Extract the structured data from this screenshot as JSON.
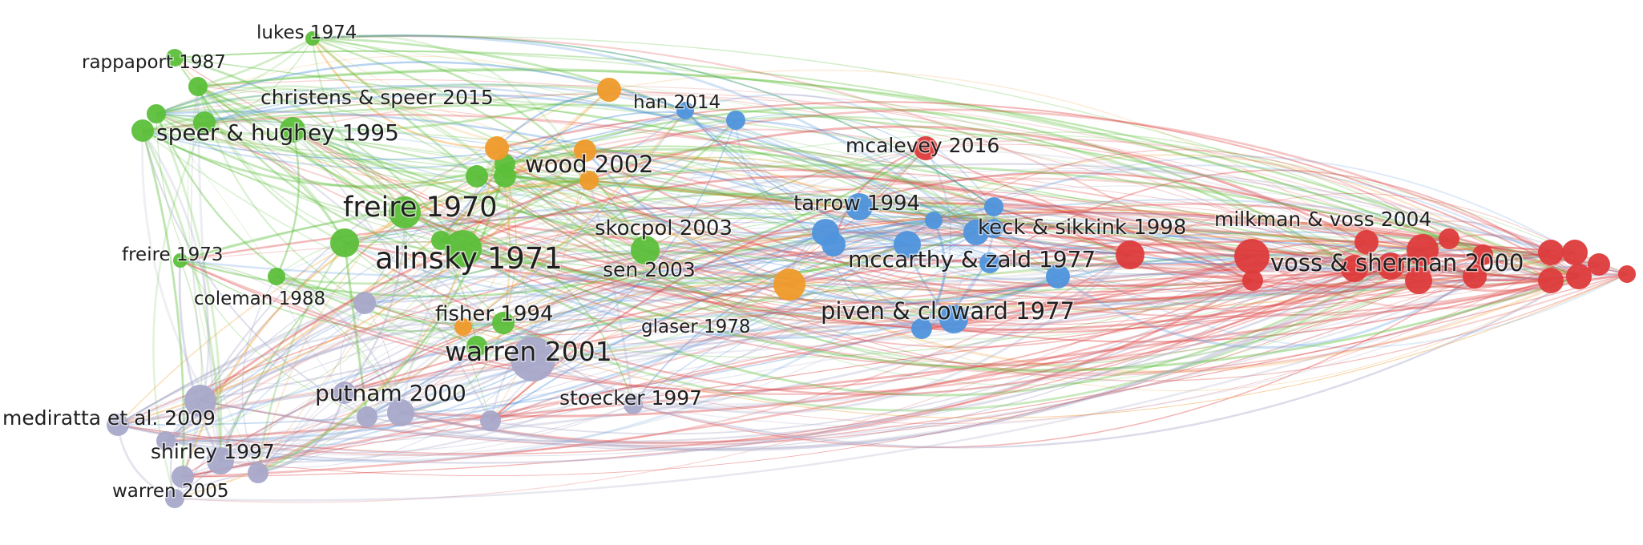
{
  "clusters": [
    {
      "id": "green",
      "color": "#5cbf3a"
    },
    {
      "id": "orange",
      "color": "#ef9a2a"
    },
    {
      "id": "blue",
      "color": "#4f93dc"
    },
    {
      "id": "red",
      "color": "#dd3b3b"
    },
    {
      "id": "purple",
      "color": "#a8a8c9"
    }
  ],
  "labels": [
    {
      "key": "lukes_1974",
      "text": "lukes 1974",
      "cluster": "green"
    },
    {
      "key": "rappaport_1987",
      "text": "rappaport 1987",
      "cluster": "green"
    },
    {
      "key": "christens_2015",
      "text": "christens & speer 2015",
      "cluster": "green"
    },
    {
      "key": "speer_1995",
      "text": "speer & hughey 1995",
      "cluster": "green"
    },
    {
      "key": "freire_1970",
      "text": "freire 1970",
      "cluster": "green"
    },
    {
      "key": "freire_1973",
      "text": "freire 1973",
      "cluster": "green"
    },
    {
      "key": "alinsky_1971",
      "text": "alinsky 1971",
      "cluster": "green"
    },
    {
      "key": "skocpol_2003",
      "text": "skocpol 2003",
      "cluster": "green"
    },
    {
      "key": "sen_2003",
      "text": "sen 2003",
      "cluster": "green"
    },
    {
      "key": "fisher_1994",
      "text": "fisher 1994",
      "cluster": "green"
    },
    {
      "key": "wood_2002",
      "text": "wood 2002",
      "cluster": "orange"
    },
    {
      "key": "han_2014",
      "text": "han 2014",
      "cluster": "blue"
    },
    {
      "key": "tarrow_1994",
      "text": "tarrow 1994",
      "cluster": "blue"
    },
    {
      "key": "keck_1998",
      "text": "keck & sikkink 1998",
      "cluster": "blue"
    },
    {
      "key": "mccarthy_1977",
      "text": "mccarthy & zald 1977",
      "cluster": "blue"
    },
    {
      "key": "piven_1977",
      "text": "piven & cloward 1977",
      "cluster": "blue"
    },
    {
      "key": "mcalevey_2016",
      "text": "mcalevey 2016",
      "cluster": "red"
    },
    {
      "key": "milkman_2004",
      "text": "milkman & voss 2004",
      "cluster": "red"
    },
    {
      "key": "voss_2000",
      "text": "voss & sherman 2000",
      "cluster": "red"
    },
    {
      "key": "coleman_1988",
      "text": "coleman 1988",
      "cluster": "purple"
    },
    {
      "key": "glaser_1978",
      "text": "glaser 1978",
      "cluster": "purple"
    },
    {
      "key": "warren_2001",
      "text": "warren 2001",
      "cluster": "purple"
    },
    {
      "key": "putnam_2000",
      "text": "putnam 2000",
      "cluster": "purple"
    },
    {
      "key": "stoecker_1997",
      "text": "stoecker 1997",
      "cluster": "purple"
    },
    {
      "key": "mediratta_2009",
      "text": "mediratta et al. 2009",
      "cluster": "purple"
    },
    {
      "key": "shirley_1997",
      "text": "shirley 1997",
      "cluster": "purple"
    },
    {
      "key": "warren_2005",
      "text": "warren 2005",
      "cluster": "purple"
    }
  ]
}
